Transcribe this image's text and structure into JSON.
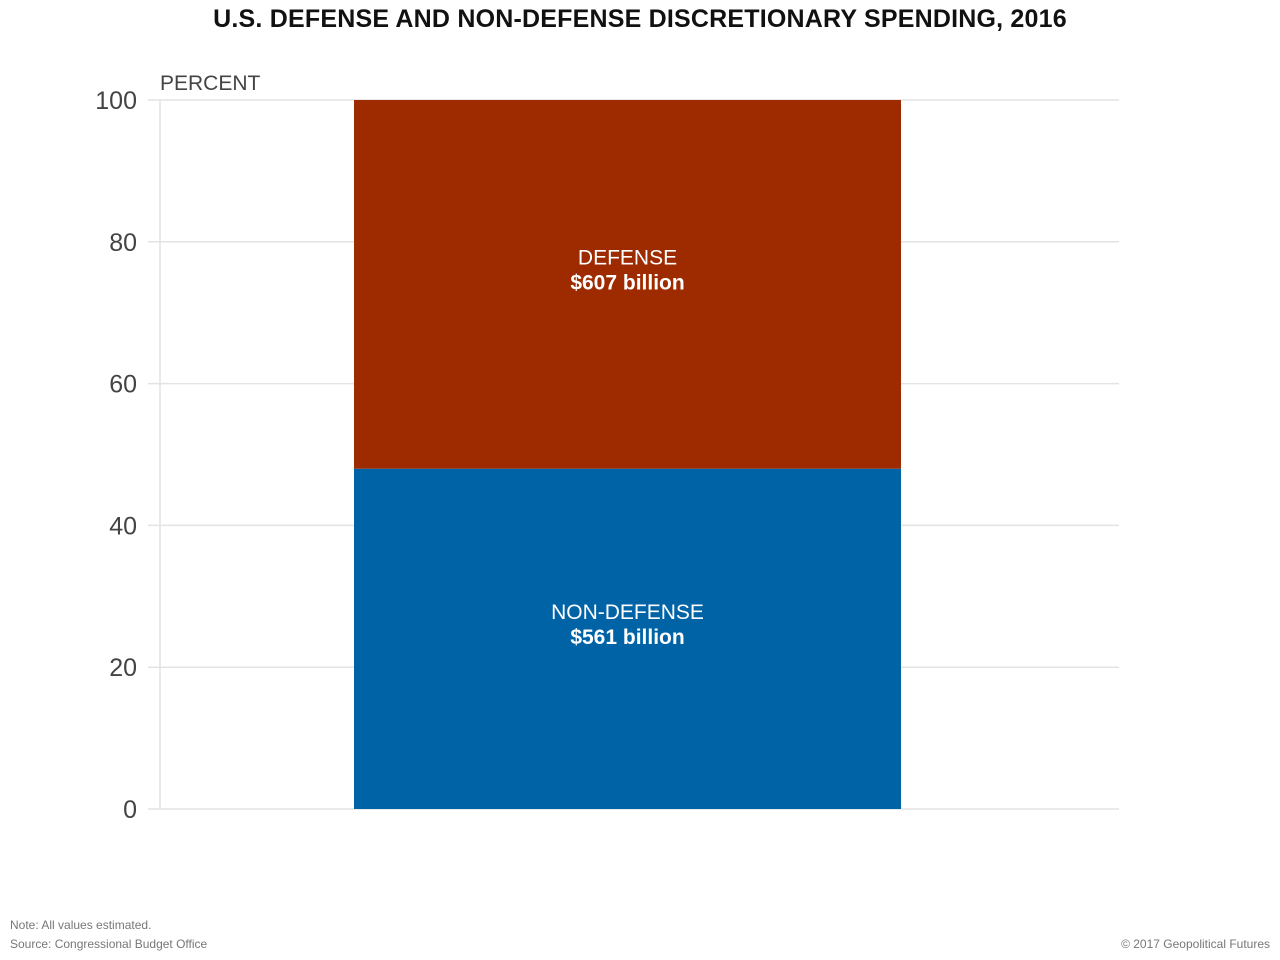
{
  "chart_data": {
    "type": "bar",
    "stacked": true,
    "title": "U.S. DEFENSE AND NON-DEFENSE DISCRETIONARY SPENDING, 2016",
    "ylabel": "PERCENT",
    "xlabel": "",
    "ylim": [
      0,
      100
    ],
    "yticks": [
      0,
      20,
      40,
      60,
      80,
      100
    ],
    "grid": true,
    "categories": [
      "2016"
    ],
    "series": [
      {
        "name": "NON-DEFENSE",
        "amount_label": "$561 billion",
        "values": [
          48.0
        ],
        "color": "#0063a6"
      },
      {
        "name": "DEFENSE",
        "amount_label": "$607 billion",
        "values": [
          52.0
        ],
        "color": "#9e2a00"
      }
    ]
  },
  "footer": {
    "note": "Note: All values estimated.",
    "source": "Source: Congressional Budget Office",
    "copyright": "© 2017 Geopolitical Futures"
  }
}
